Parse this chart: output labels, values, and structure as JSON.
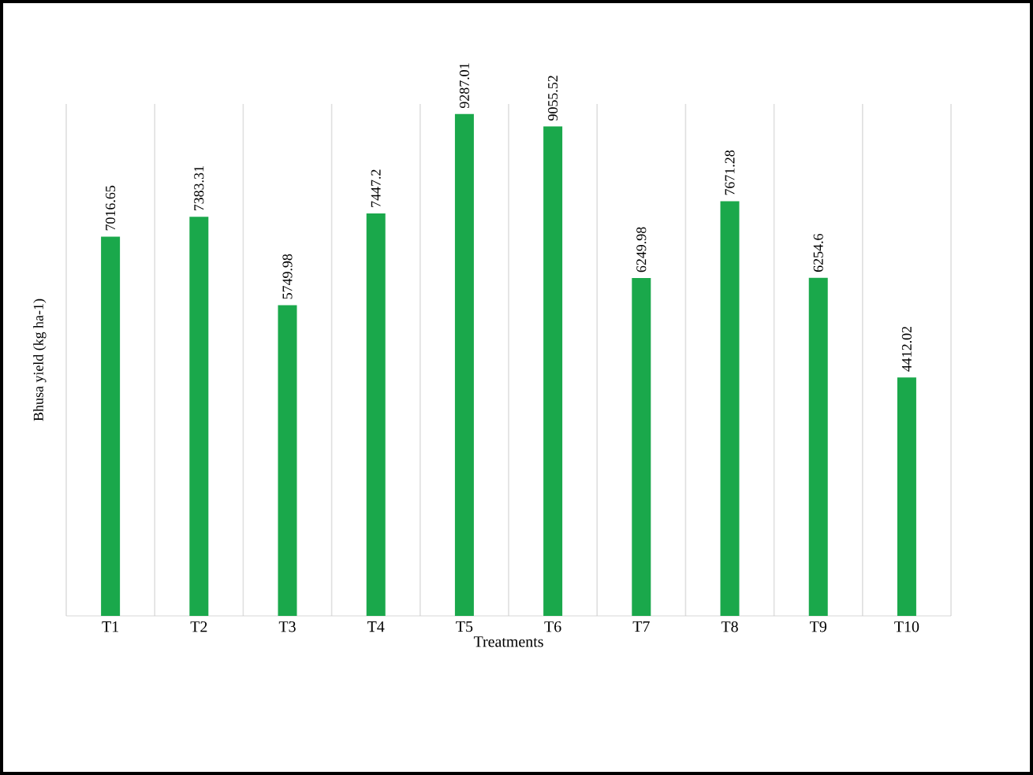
{
  "chart_data": {
    "type": "bar",
    "xlabel": "Treatments",
    "ylabel": "Bhusa yield  (kg ha-1)",
    "categories": [
      "T1",
      "T2",
      "T3",
      "T4",
      "T5",
      "T6",
      "T7",
      "T8",
      "T9",
      "T10"
    ],
    "values": [
      7016.65,
      7383.31,
      5749.98,
      7447.2,
      9287.01,
      9055.52,
      6249.98,
      7671.28,
      6254.6,
      4412.02
    ],
    "color": "#1aa84b",
    "data_labels": true,
    "grid": "x"
  }
}
